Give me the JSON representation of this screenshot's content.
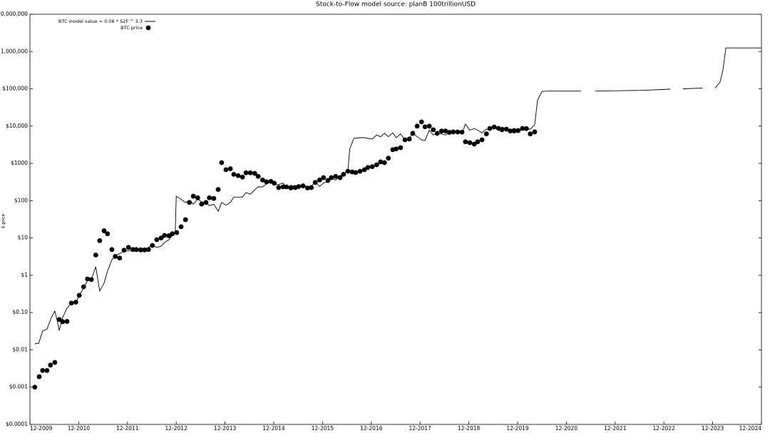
{
  "chart_data": {
    "type": "line",
    "title": "Stock-to-Flow model     source: planB 100trillionUSD",
    "y_label": "$ price",
    "log_y": true,
    "legend": "upper left",
    "xlim": [
      2009.92,
      2024.92
    ],
    "xticks": [
      {
        "value": 2009.92,
        "label": "12-2009"
      },
      {
        "value": 2010.92,
        "label": "12-2010"
      },
      {
        "value": 2011.92,
        "label": "12-2011"
      },
      {
        "value": 2012.92,
        "label": "12-2012"
      },
      {
        "value": 2013.92,
        "label": "12-2013"
      },
      {
        "value": 2014.92,
        "label": "12-2014"
      },
      {
        "value": 2015.92,
        "label": "12-2015"
      },
      {
        "value": 2016.92,
        "label": "12-2016"
      },
      {
        "value": 2017.92,
        "label": "12-2017"
      },
      {
        "value": 2018.92,
        "label": "12-2018"
      },
      {
        "value": 2019.92,
        "label": "12-2019"
      },
      {
        "value": 2020.92,
        "label": "12-2020"
      },
      {
        "value": 2021.92,
        "label": "12-2021"
      },
      {
        "value": 2022.92,
        "label": "12-2022"
      },
      {
        "value": 2023.92,
        "label": "12-2023"
      },
      {
        "value": 2024.92,
        "label": "12-2024"
      }
    ],
    "ylim": [
      0.0001,
      10000000
    ],
    "yticks": [
      {
        "value": 0.0001,
        "label": "$0.0001"
      },
      {
        "value": 0.001,
        "label": "$0.001"
      },
      {
        "value": 0.01,
        "label": "$0.01"
      },
      {
        "value": 0.1,
        "label": "$0.10"
      },
      {
        "value": 1,
        "label": "$1"
      },
      {
        "value": 10,
        "label": "$10"
      },
      {
        "value": 100,
        "label": "$100"
      },
      {
        "value": 1000,
        "label": "$1000"
      },
      {
        "value": 10000,
        "label": "$10,000"
      },
      {
        "value": 100000,
        "label": "$100,000"
      },
      {
        "value": 1000000,
        "label": "$1,000,000"
      },
      {
        "value": 10000000,
        "label": "$10,000,000"
      }
    ],
    "series": [
      {
        "name": "BTC model value = 0.08 * S2F ^ 3.3",
        "type": "line",
        "color": "#000000",
        "x": [
          2010.02,
          2010.1,
          2010.18,
          2010.27,
          2010.36,
          2010.43,
          2010.48,
          2010.52,
          2010.59,
          2010.68,
          2010.77,
          2010.86,
          2010.93,
          2011.02,
          2011.1,
          2011.18,
          2011.27,
          2011.35,
          2011.44,
          2011.51,
          2011.6,
          2011.67,
          2011.76,
          2011.85,
          2011.94,
          2012.03,
          2012.1,
          2012.19,
          2012.27,
          2012.35,
          2012.43,
          2012.52,
          2012.61,
          2012.68,
          2012.77,
          2012.84,
          2012.9,
          2012.92,
          2013.02,
          2013.11,
          2013.19,
          2013.27,
          2013.36,
          2013.44,
          2013.53,
          2013.6,
          2013.69,
          2013.78,
          2013.85,
          2013.94,
          2014.03,
          2014.1,
          2014.19,
          2014.28,
          2014.35,
          2014.44,
          2014.53,
          2014.6,
          2014.69,
          2014.77,
          2014.86,
          2014.93,
          2015.02,
          2015.11,
          2015.18,
          2015.27,
          2015.36,
          2015.43,
          2015.52,
          2015.61,
          2015.69,
          2015.77,
          2015.86,
          2015.94,
          2016.03,
          2016.1,
          2016.19,
          2016.28,
          2016.35,
          2016.44,
          2016.48,
          2016.56,
          2016.69,
          2016.78,
          2016.85,
          2016.94,
          2017.03,
          2017.11,
          2017.19,
          2017.27,
          2017.36,
          2017.43,
          2017.52,
          2017.61,
          2017.7,
          2017.77,
          2017.86,
          2017.95,
          2018.02,
          2018.11,
          2018.19,
          2018.27,
          2018.36,
          2018.44,
          2018.52,
          2018.6,
          2018.69,
          2018.78,
          2018.85,
          2018.94,
          2019.03,
          2019.1,
          2019.19,
          2019.28,
          2019.35,
          2019.44,
          2019.53,
          2019.6,
          2019.69,
          2019.77,
          2019.85,
          2019.93,
          2020.02,
          2020.1,
          2020.18,
          2020.27,
          2020.33,
          2020.42,
          2020.56,
          2021.22,
          2021.36,
          2021.51,
          2022.46,
          2023.05,
          2023.18,
          2023.31,
          2023.71,
          2023.84,
          2023.97,
          2024.07,
          2024.13,
          2024.19,
          2024.92
        ],
        "values": [
          0.0145,
          0.015,
          0.032,
          0.036,
          0.074,
          0.11,
          0.06,
          0.033,
          0.074,
          0.13,
          0.18,
          0.18,
          0.29,
          0.45,
          0.72,
          0.77,
          1.7,
          0.38,
          0.62,
          1.3,
          2.6,
          3.4,
          3.8,
          4.5,
          4.5,
          4.9,
          4.5,
          4.5,
          4.5,
          5.6,
          6.4,
          5.6,
          6,
          7.6,
          9,
          11.7,
          14,
          132,
          110,
          90,
          100,
          81,
          110,
          94,
          87,
          74,
          80,
          52,
          90,
          76,
          90,
          125,
          125,
          125,
          165,
          150,
          195,
          235,
          235,
          280,
          330,
          280,
          270,
          300,
          220,
          260,
          240,
          240,
          280,
          220,
          240,
          330,
          240,
          300,
          330,
          400,
          360,
          470,
          510,
          680,
          2500,
          4700,
          4900,
          4900,
          4700,
          4500,
          5800,
          5200,
          6400,
          5200,
          6600,
          4900,
          6200,
          4300,
          4700,
          6600,
          5200,
          4300,
          4100,
          7800,
          5800,
          6600,
          6200,
          5800,
          6600,
          7600,
          7000,
          6200,
          11300,
          7800,
          8600,
          7800,
          6600,
          8400,
          7600,
          9500,
          7600,
          9500,
          8300,
          7600,
          8800,
          7400,
          8000,
          8300,
          8300,
          10800,
          50000,
          85000,
          87000,
          87000,
          null,
          87000,
          91000,
          98000,
          null,
          100000,
          105000,
          null,
          105000,
          150000,
          320000,
          1250000,
          1250000
        ]
      },
      {
        "name": "BTC price",
        "type": "scatter",
        "color": "#000000",
        "x": [
          2010.02,
          2010.11,
          2010.18,
          2010.27,
          2010.34,
          2010.43,
          2010.52,
          2010.59,
          2010.68,
          2010.77,
          2010.86,
          2010.93,
          2011.02,
          2011.1,
          2011.18,
          2011.27,
          2011.35,
          2011.44,
          2011.51,
          2011.6,
          2011.67,
          2011.76,
          2011.85,
          2011.94,
          2012.03,
          2012.1,
          2012.19,
          2012.27,
          2012.35,
          2012.43,
          2012.52,
          2012.61,
          2012.68,
          2012.77,
          2012.84,
          2012.93,
          2013.02,
          2013.11,
          2013.19,
          2013.27,
          2013.36,
          2013.44,
          2013.53,
          2013.6,
          2013.69,
          2013.78,
          2013.85,
          2013.94,
          2014.03,
          2014.1,
          2014.19,
          2014.28,
          2014.35,
          2014.44,
          2014.53,
          2014.6,
          2014.69,
          2014.77,
          2014.86,
          2014.93,
          2015.02,
          2015.11,
          2015.18,
          2015.27,
          2015.36,
          2015.43,
          2015.52,
          2015.61,
          2015.69,
          2015.77,
          2015.86,
          2015.94,
          2016.03,
          2016.1,
          2016.19,
          2016.28,
          2016.35,
          2016.44,
          2016.53,
          2016.6,
          2016.69,
          2016.78,
          2016.85,
          2016.94,
          2017.03,
          2017.11,
          2017.19,
          2017.27,
          2017.36,
          2017.43,
          2017.52,
          2017.61,
          2017.7,
          2017.77,
          2017.86,
          2017.95,
          2018.02,
          2018.11,
          2018.19,
          2018.27,
          2018.36,
          2018.44,
          2018.52,
          2018.6,
          2018.69,
          2018.78,
          2018.85,
          2018.94,
          2019.03,
          2019.1,
          2019.19,
          2019.28,
          2019.35,
          2019.44,
          2019.53,
          2019.6,
          2019.69,
          2019.77,
          2019.85,
          2019.93,
          2020.02,
          2020.1,
          2020.18,
          2020.27
        ],
        "values": [
          0.001,
          0.0019,
          0.0028,
          0.0028,
          0.0039,
          0.0046,
          0.065,
          0.057,
          0.058,
          0.18,
          0.19,
          0.29,
          0.49,
          0.8,
          0.77,
          3.5,
          8.5,
          15.6,
          13,
          4.9,
          3.2,
          2.9,
          4.7,
          5.6,
          4.9,
          4.9,
          4.8,
          4.8,
          4.9,
          6.3,
          9,
          10,
          11.7,
          11.5,
          13,
          14,
          20,
          31,
          90,
          132,
          120,
          81,
          90,
          120,
          115,
          200,
          1050,
          680,
          720,
          510,
          470,
          430,
          560,
          560,
          540,
          450,
          360,
          320,
          330,
          295,
          225,
          235,
          235,
          220,
          225,
          240,
          250,
          220,
          225,
          310,
          360,
          415,
          350,
          415,
          450,
          415,
          510,
          615,
          590,
          570,
          615,
          680,
          780,
          820,
          920,
          1100,
          1050,
          1380,
          2340,
          2450,
          2650,
          4300,
          4500,
          6400,
          10000,
          13000,
          9600,
          10000,
          8000,
          6400,
          7400,
          7400,
          6800,
          7000,
          7000,
          6900,
          3800,
          3600,
          3300,
          3800,
          4300,
          6200,
          8700,
          9500,
          8700,
          8000,
          8300,
          7400,
          7400,
          7600,
          8700,
          8600,
          6200,
          7000
        ]
      }
    ]
  }
}
